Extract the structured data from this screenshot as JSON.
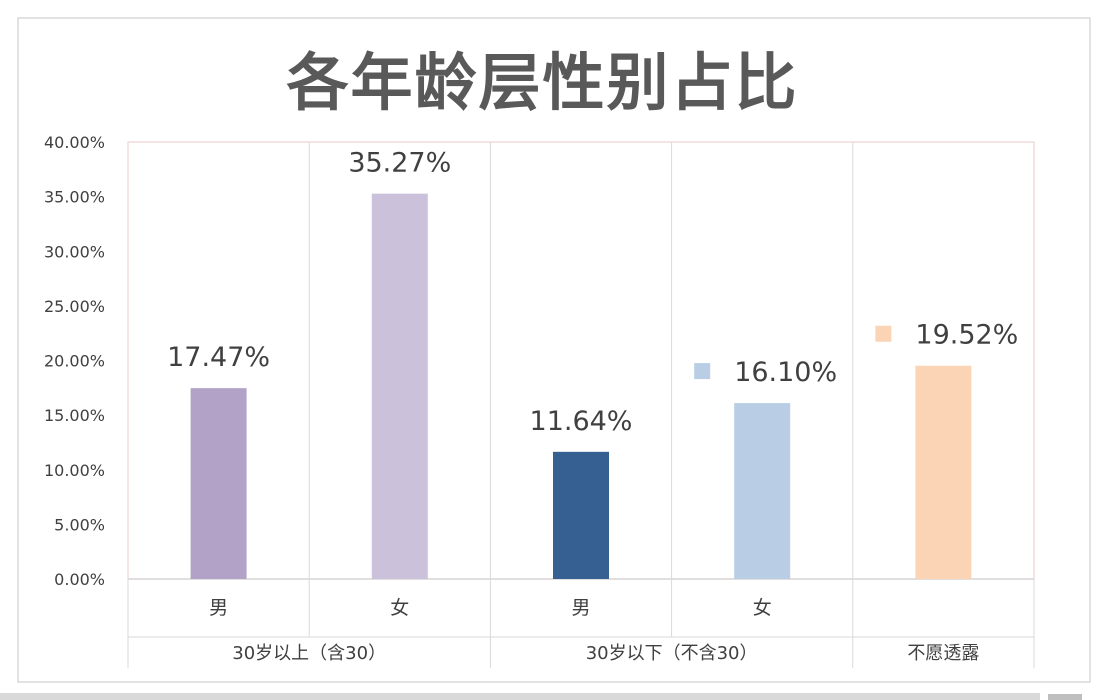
{
  "chart_data": {
    "type": "bar",
    "title": "各年龄层性别占比",
    "xlabel": "",
    "ylabel": "",
    "ylim": [
      0,
      40
    ],
    "y_tick_labels": [
      "0.00%",
      "5.00%",
      "10.00%",
      "15.00%",
      "20.00%",
      "25.00%",
      "30.00%",
      "35.00%",
      "40.00%"
    ],
    "grid": true,
    "bars": [
      {
        "group": "30岁以上（含30）",
        "category": "男",
        "value": 17.47,
        "label": "17.47%",
        "color": "#b3a2c7",
        "legend_marker": false
      },
      {
        "group": "30岁以上（含30）",
        "category": "女",
        "value": 35.27,
        "label": "35.27%",
        "color": "#ccc1da",
        "legend_marker": false
      },
      {
        "group": "30岁以下（不含30）",
        "category": "男",
        "value": 11.64,
        "label": "11.64%",
        "color": "#376092",
        "legend_marker": false
      },
      {
        "group": "30岁以下（不含30）",
        "category": "女",
        "value": 16.1,
        "label": "16.10%",
        "color": "#b9cde5",
        "legend_marker": true
      },
      {
        "group": "不愿透露",
        "category": "",
        "value": 19.52,
        "label": "19.52%",
        "color": "#fad4b5",
        "legend_marker": true
      }
    ],
    "groups": [
      "30岁以上（含30）",
      "30岁以下（不含30）",
      "不愿透露"
    ]
  },
  "colors": {
    "frame_border": "#d9d9d9",
    "plot_border": "#f2dcdb",
    "gridline": "#d9d9d9",
    "title_text": "#595959",
    "label_text": "#404040"
  }
}
